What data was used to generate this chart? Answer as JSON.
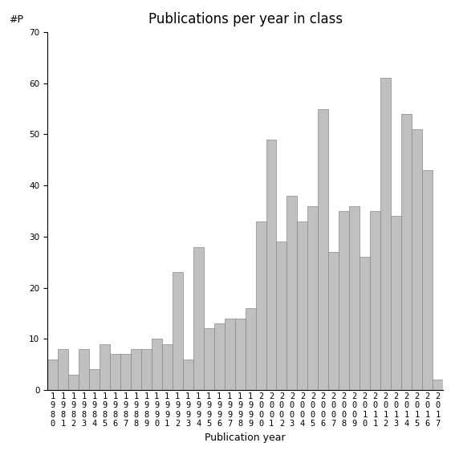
{
  "title": "Publications per year in class",
  "xlabel": "Publication year",
  "ylabel": "#P",
  "years": [
    1980,
    1981,
    1982,
    1983,
    1984,
    1985,
    1986,
    1987,
    1988,
    1989,
    1990,
    1991,
    1992,
    1993,
    1994,
    1995,
    1996,
    1997,
    1998,
    1999,
    2000,
    2001,
    2002,
    2003,
    2004,
    2005,
    2006,
    2007,
    2008,
    2009,
    2010,
    2011,
    2012,
    2013,
    2014,
    2015,
    2016,
    2017
  ],
  "values": [
    6,
    8,
    3,
    8,
    4,
    9,
    7,
    7,
    8,
    8,
    10,
    9,
    23,
    6,
    28,
    12,
    13,
    14,
    14,
    16,
    33,
    49,
    29,
    38,
    33,
    36,
    55,
    27,
    35,
    36,
    26,
    35,
    61,
    34,
    54,
    51,
    43,
    2
  ],
  "bar_color": "#c0c0c0",
  "bar_edgecolor": "#888888",
  "ylim": [
    0,
    70
  ],
  "yticks": [
    0,
    10,
    20,
    30,
    40,
    50,
    60,
    70
  ],
  "background_color": "#ffffff",
  "title_fontsize": 12,
  "label_fontsize": 9,
  "tick_fontsize": 7.5
}
